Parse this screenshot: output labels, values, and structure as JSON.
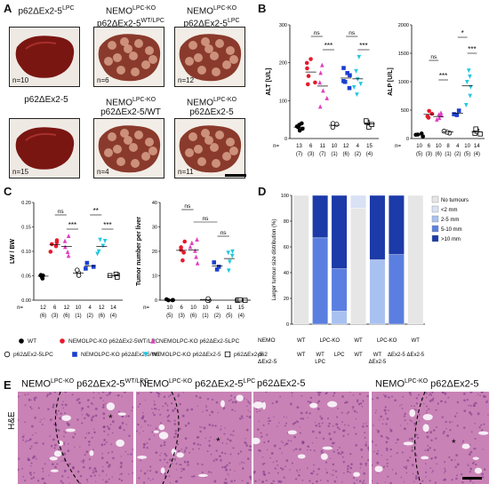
{
  "panel_labels": {
    "a": "A",
    "b": "B",
    "c": "C",
    "d": "D",
    "e": "E"
  },
  "panel_a": {
    "livers": [
      {
        "title": "p62ΔEx2-5",
        "sup": "LPC",
        "title2": "",
        "n": "n=10",
        "style": "normal"
      },
      {
        "title": "NEMO",
        "sup": "LPC-KO",
        "title2": "p62ΔEx2-5",
        "sup2": "WT/LPC",
        "n": "n=6",
        "style": "tumour"
      },
      {
        "title": "NEMO",
        "sup": "LPC-KO",
        "title2": "p62ΔEx2-5",
        "sup2": "LPC",
        "n": "n=12",
        "style": "tumour"
      },
      {
        "title": "p62ΔEx2-5",
        "sup": "",
        "title2": "",
        "n": "n=15",
        "style": "normal"
      },
      {
        "title": "NEMO",
        "sup": "LPC-KO",
        "title2": "p62ΔEx2-5/WT",
        "sup2": "",
        "n": "n=4",
        "style": "tumour"
      },
      {
        "title": "NEMO",
        "sup": "LPC-KO",
        "title2": "p62ΔEx2-5",
        "sup2": "",
        "n": "n=11",
        "style": "tumour"
      }
    ]
  },
  "panel_b": {
    "alt": {
      "ylabel": "ALT [U/L]",
      "ticks": [
        "0",
        "100",
        "200",
        "300"
      ]
    },
    "alp": {
      "ylabel": "ALP [U/L]",
      "ticks": [
        "0",
        "500",
        "1000",
        "1500",
        "2000"
      ]
    },
    "n_alt": [
      "13",
      "6",
      "11",
      "10",
      "12",
      "4",
      "15"
    ],
    "p_alt": [
      "(7)",
      "(3)",
      "(7)",
      "(1)",
      "(6)",
      "(2)",
      "(4)"
    ],
    "n_alp": [
      "10",
      "6",
      "10",
      "8",
      "4",
      "10",
      "14"
    ],
    "p_alp": [
      "(5)",
      "(3)",
      "(6)",
      "(1)",
      "(2)",
      "(5)",
      "(4)"
    ],
    "nlab": "n="
  },
  "panel_c": {
    "lw": {
      "ylabel": "LW / BW",
      "ticks": [
        "0.00",
        "0.05",
        "0.10",
        "0.15",
        "0.20"
      ]
    },
    "tn": {
      "ylabel": "Tumor number per liver",
      "ticks": [
        "0",
        "10",
        "20",
        "30",
        "40"
      ]
    },
    "n_lw": [
      "12",
      "6",
      "12",
      "10",
      "4",
      "12",
      "14"
    ],
    "p_lw": [
      "(6)",
      "(3)",
      "(6)",
      "(1)",
      "(2)",
      "(6)",
      "(4)"
    ],
    "n_tn": [
      "10",
      "6",
      "10",
      "10",
      "4",
      "11",
      "15"
    ],
    "p_tn": [
      "(5)",
      "(3)",
      "(6)",
      "(1)",
      "(2)",
      "(5)",
      "(4)"
    ],
    "nlab": "n="
  },
  "sig": {
    "ns": "ns",
    "s1": "*",
    "s2": "**",
    "s3": "***"
  },
  "legend": [
    {
      "label": "WT",
      "marker": "dot",
      "color": "#000000"
    },
    {
      "label": "NEMOLPC-KO p62ΔEx2-5WT/LPC",
      "marker": "dot",
      "color": "#e8192c"
    },
    {
      "label": "NEMOLPC-KO p62ΔEx2-5LPC",
      "marker": "tri",
      "color": "#e040c0"
    },
    {
      "label": "p62ΔEx2-5LPC",
      "marker": "ring",
      "color": "#000000"
    },
    {
      "label": "NEMOLPC-KO p62ΔEx2-5/WT",
      "marker": "sq",
      "color": "#1a3fd0"
    },
    {
      "label": "NEMOLPC-KO p62ΔEx2-5",
      "marker": "tridown",
      "color": "#22c8e0"
    },
    {
      "label": "p62ΔEx2-5",
      "marker": "sqo",
      "color": "#000000"
    }
  ],
  "panel_d": {
    "ylabel": "Larger tumour size distribution (%)",
    "ticks": [
      "0",
      "20",
      "40",
      "60",
      "80",
      "100"
    ],
    "legend": [
      "No tumours",
      "<2 mm",
      "2-5 mm",
      "5-10 mm",
      ">10 mm"
    ],
    "colors": [
      "#e6e6e6",
      "#d9e1f5",
      "#a9c1f0",
      "#5b7fe0",
      "#1c3aa8"
    ],
    "row1_label": "NEMO",
    "row2_label": "p62\nΔEx2-5",
    "row1": [
      "WT",
      "LPC-KO",
      "WT",
      "LPC-KO",
      "WT"
    ],
    "row2": [
      "WT",
      "WT\nLPC",
      "LPC",
      "WT",
      "WT\nΔEx2-5",
      "ΔEx2-5",
      "ΔEx2-5"
    ]
  },
  "chart_data": {
    "type": "bar",
    "title": "",
    "ylabel": "Larger tumour size distribution (%)",
    "ylim": [
      0,
      100
    ],
    "categories": [
      "WT",
      "NEMO LPC-KO p62 WT/LPC",
      "NEMO LPC-KO p62 LPC",
      "p62 LPC",
      "NEMO LPC-KO p62 ΔEx2-5/WT",
      "NEMO LPC-KO p62 ΔEx2-5",
      "p62 ΔEx2-5"
    ],
    "series": [
      {
        "name": "No tumours",
        "values": [
          100,
          0,
          0,
          90,
          0,
          0,
          100
        ]
      },
      {
        "name": "<2 mm",
        "values": [
          0,
          0,
          0,
          10,
          0,
          0,
          0
        ]
      },
      {
        "name": "2-5 mm",
        "values": [
          0,
          0,
          10,
          0,
          50,
          0,
          0
        ]
      },
      {
        "name": "5-10 mm",
        "values": [
          0,
          67,
          33,
          0,
          0,
          54,
          0
        ]
      },
      {
        "name": ">10 mm",
        "values": [
          0,
          33,
          57,
          0,
          50,
          46,
          0
        ]
      }
    ]
  },
  "panel_e": {
    "side": "H&E",
    "titles": [
      {
        "a": "NEMO",
        "sa": "LPC-KO",
        "b": " p62ΔEx2-5",
        "sb": "WT/LPC"
      },
      {
        "a": "NEMO",
        "sa": "LPC-KO",
        "b": " p62ΔEx2-5",
        "sb": "LPC"
      },
      {
        "a": "p62ΔEx2-5",
        "sa": "",
        "b": "",
        "sb": ""
      },
      {
        "a": "NEMO",
        "sa": "LPC-KO",
        "b": " p62ΔEx2-5",
        "sb": ""
      }
    ],
    "star": "*"
  }
}
